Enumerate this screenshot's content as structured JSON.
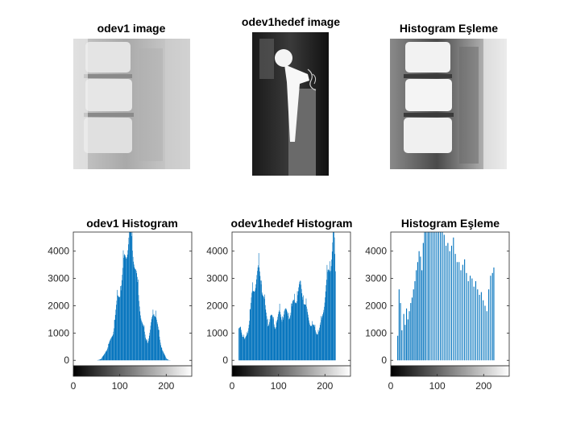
{
  "colors": {
    "bar": "#0072BD",
    "axis": "#262626",
    "background": "#ffffff"
  },
  "images": [
    {
      "title": "odev1 image",
      "content": "lumbar spine x-ray (original)"
    },
    {
      "title": "odev1hedef image",
      "content": "hip prosthesis x-ray (target)"
    },
    {
      "title": "Histogram Eşleme",
      "content": "lumbar spine x-ray after histogram matching"
    }
  ],
  "chart_data": [
    {
      "type": "bar",
      "title": "odev1 Histogram",
      "xlabel": "",
      "ylabel": "",
      "xlim": [
        0,
        255
      ],
      "ylim": [
        -200,
        4700
      ],
      "x_ticks": [
        0,
        100,
        200
      ],
      "y_ticks": [
        0,
        1000,
        2000,
        3000,
        4000
      ],
      "grid": false,
      "colorbar": "grayscale 0-255",
      "profile": [
        [
          0,
          0
        ],
        [
          50,
          0
        ],
        [
          55,
          20
        ],
        [
          60,
          60
        ],
        [
          65,
          180
        ],
        [
          70,
          350
        ],
        [
          75,
          520
        ],
        [
          80,
          740
        ],
        [
          85,
          1050
        ],
        [
          90,
          1600
        ],
        [
          95,
          2250
        ],
        [
          100,
          2600
        ],
        [
          105,
          3000
        ],
        [
          110,
          3700
        ],
        [
          115,
          4200
        ],
        [
          120,
          4500
        ],
        [
          125,
          4350
        ],
        [
          130,
          3900
        ],
        [
          135,
          3100
        ],
        [
          140,
          2300
        ],
        [
          145,
          1700
        ],
        [
          150,
          1200
        ],
        [
          155,
          800
        ],
        [
          160,
          700
        ],
        [
          165,
          1050
        ],
        [
          170,
          1600
        ],
        [
          173,
          1850
        ],
        [
          177,
          1700
        ],
        [
          180,
          1300
        ],
        [
          185,
          850
        ],
        [
          190,
          450
        ],
        [
          195,
          220
        ],
        [
          200,
          60
        ],
        [
          205,
          10
        ],
        [
          210,
          0
        ],
        [
          255,
          0
        ]
      ]
    },
    {
      "type": "bar",
      "title": "odev1hedef Histogram",
      "xlabel": "",
      "ylabel": "",
      "xlim": [
        0,
        255
      ],
      "ylim": [
        -200,
        4700
      ],
      "x_ticks": [
        0,
        100,
        200
      ],
      "y_ticks": [
        0,
        1000,
        2000,
        3000,
        4000
      ],
      "grid": false,
      "colorbar": "grayscale 0-255",
      "profile": [
        [
          0,
          0
        ],
        [
          13,
          0
        ],
        [
          14,
          1100
        ],
        [
          18,
          1350
        ],
        [
          22,
          900
        ],
        [
          27,
          700
        ],
        [
          32,
          1000
        ],
        [
          37,
          1500
        ],
        [
          42,
          2250
        ],
        [
          47,
          2700
        ],
        [
          52,
          3050
        ],
        [
          57,
          3200
        ],
        [
          62,
          3000
        ],
        [
          67,
          2400
        ],
        [
          72,
          1700
        ],
        [
          77,
          1350
        ],
        [
          82,
          1650
        ],
        [
          87,
          1450
        ],
        [
          92,
          1250
        ],
        [
          97,
          1500
        ],
        [
          102,
          1700
        ],
        [
          107,
          1550
        ],
        [
          112,
          1800
        ],
        [
          117,
          1700
        ],
        [
          122,
          1650
        ],
        [
          127,
          1850
        ],
        [
          132,
          2050
        ],
        [
          137,
          2300
        ],
        [
          142,
          2500
        ],
        [
          147,
          2700
        ],
        [
          152,
          2450
        ],
        [
          157,
          2000
        ],
        [
          162,
          1650
        ],
        [
          167,
          1450
        ],
        [
          172,
          1250
        ],
        [
          177,
          1150
        ],
        [
          182,
          1050
        ],
        [
          187,
          1050
        ],
        [
          192,
          1400
        ],
        [
          197,
          2050
        ],
        [
          202,
          2650
        ],
        [
          207,
          3150
        ],
        [
          212,
          3650
        ],
        [
          216,
          4300
        ],
        [
          219,
          4600
        ],
        [
          222,
          3100
        ],
        [
          223,
          0
        ],
        [
          255,
          0
        ]
      ]
    },
    {
      "type": "bar",
      "title": "Histogram Eşleme",
      "xlabel": "",
      "ylabel": "",
      "xlim": [
        0,
        255
      ],
      "ylim": [
        -200,
        4700
      ],
      "x_ticks": [
        0,
        100,
        200
      ],
      "y_ticks": [
        0,
        1000,
        2000,
        3000,
        4000
      ],
      "grid": false,
      "colorbar": "grayscale 0-255",
      "bin_values": [
        [
          14,
          900
        ],
        [
          17,
          2600
        ],
        [
          20,
          2100
        ],
        [
          23,
          1100
        ],
        [
          27,
          1700
        ],
        [
          30,
          1300
        ],
        [
          33,
          1900
        ],
        [
          36,
          1500
        ],
        [
          39,
          1800
        ],
        [
          42,
          2100
        ],
        [
          45,
          2300
        ],
        [
          48,
          2600
        ],
        [
          51,
          2900
        ],
        [
          54,
          3300
        ],
        [
          57,
          3600
        ],
        [
          60,
          4000
        ],
        [
          63,
          3800
        ],
        [
          66,
          3300
        ],
        [
          69,
          4300
        ],
        [
          72,
          4700
        ],
        [
          75,
          4700
        ],
        [
          79,
          4700
        ],
        [
          82,
          4700
        ],
        [
          86,
          4700
        ],
        [
          90,
          4700
        ],
        [
          94,
          4700
        ],
        [
          98,
          4700
        ],
        [
          102,
          4700
        ],
        [
          106,
          4700
        ],
        [
          110,
          4700
        ],
        [
          114,
          4600
        ],
        [
          118,
          4200
        ],
        [
          122,
          4300
        ],
        [
          126,
          4000
        ],
        [
          130,
          4200
        ],
        [
          134,
          4500
        ],
        [
          138,
          3900
        ],
        [
          142,
          3600
        ],
        [
          146,
          3600
        ],
        [
          150,
          3300
        ],
        [
          154,
          3500
        ],
        [
          158,
          3700
        ],
        [
          162,
          3200
        ],
        [
          166,
          2900
        ],
        [
          170,
          3100
        ],
        [
          174,
          3000
        ],
        [
          178,
          2700
        ],
        [
          182,
          2900
        ],
        [
          186,
          2600
        ],
        [
          190,
          2400
        ],
        [
          194,
          2500
        ],
        [
          198,
          2200
        ],
        [
          202,
          2000
        ],
        [
          206,
          1800
        ],
        [
          210,
          2600
        ],
        [
          214,
          3100
        ],
        [
          218,
          3200
        ],
        [
          221,
          3400
        ]
      ]
    }
  ]
}
